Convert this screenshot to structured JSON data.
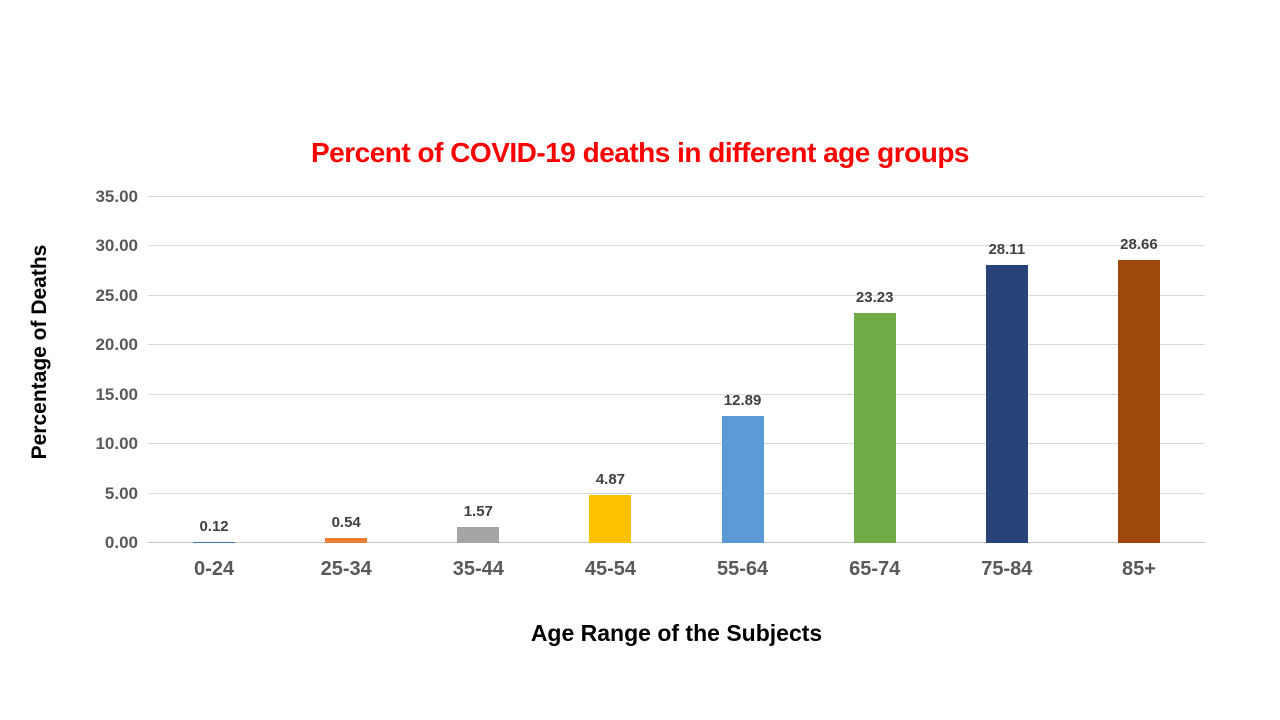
{
  "chart_data": {
    "type": "bar",
    "title": "Percent of COVID-19 deaths in different age groups",
    "xlabel": "Age Range of the Subjects",
    "ylabel": "Percentage of Deaths",
    "categories": [
      "0-24",
      "25-34",
      "35-44",
      "45-54",
      "55-64",
      "65-74",
      "75-84",
      "85+"
    ],
    "values": [
      0.12,
      0.54,
      1.57,
      4.87,
      12.89,
      23.23,
      28.11,
      28.66
    ],
    "data_labels": [
      "0.12",
      "0.54",
      "1.57",
      "4.87",
      "12.89",
      "23.23",
      "28.11",
      "28.66"
    ],
    "bar_colors": [
      "#4472C4",
      "#ED7D31",
      "#A5A5A5",
      "#FFC000",
      "#5B9BD5",
      "#70AD47",
      "#264478",
      "#9E480E"
    ],
    "ylim": [
      0,
      35
    ],
    "ytick_step": 5,
    "ytick_labels": [
      "0.00",
      "5.00",
      "10.00",
      "15.00",
      "20.00",
      "25.00",
      "30.00",
      "35.00"
    ],
    "grid": "horizontal",
    "legend": "none",
    "title_color": "#FF0000",
    "tick_color": "#595959",
    "data_label_color": "#404040",
    "gridline_color": "#D9D9D9",
    "axis_line_color": "#C6C6C6",
    "background_color": "#FFFFFF"
  }
}
